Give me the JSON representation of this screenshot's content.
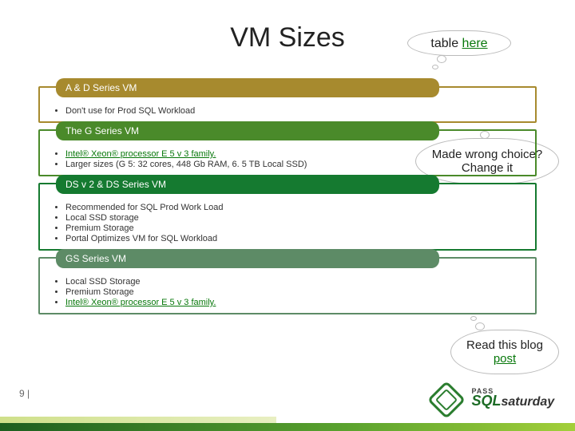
{
  "title": "VM Sizes",
  "clouds": {
    "top": {
      "prefix": "table ",
      "link": "here"
    },
    "mid": "Made wrong choice? Change it",
    "bot": {
      "prefix": "Read this blog ",
      "link": "post"
    }
  },
  "panels": [
    {
      "color": "c-gold",
      "tab": "A & D Series VM",
      "items": [
        "Don't use for Prod SQL Workload"
      ],
      "links": []
    },
    {
      "color": "c-green",
      "tab": "The G Series VM",
      "items": [
        "Intel® Xeon® processor E 5 v 3 family.",
        "Larger sizes (G 5: 32 cores, 448 Gb RAM, 6. 5 TB Local SSD)"
      ],
      "links": [
        0
      ]
    },
    {
      "color": "c-deep",
      "tab": "DS v 2 & DS Series VM",
      "items": [
        "Recommended for SQL Prod Work Load",
        "Local SSD storage",
        "Premium Storage",
        "Portal Optimizes VM for SQL Workload"
      ],
      "links": []
    },
    {
      "color": "c-teal",
      "tab": "GS Series VM",
      "items": [
        "Local SSD Storage",
        "Premium Storage",
        "Intel® Xeon® processor E 5 v 3 family."
      ],
      "links": [
        2
      ]
    }
  ],
  "page": "9 |",
  "logo": {
    "pass": "PASS",
    "sql": "SQL",
    "sat": "saturday"
  },
  "colors": {
    "gold": "#a78a2e",
    "green": "#4a8a2a",
    "deep": "#157a30",
    "teal": "#5d8b66",
    "linkGreen": "#08780b"
  }
}
